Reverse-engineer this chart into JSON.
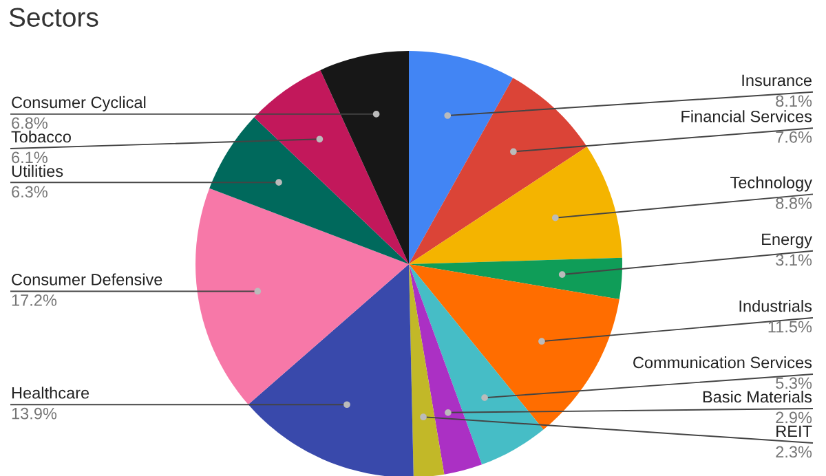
{
  "chart_data": {
    "type": "pie",
    "title": "Sectors",
    "categories": [
      "Insurance",
      "Financial Services",
      "Technology",
      "Energy",
      "Industrials",
      "Communication Services",
      "Basic Materials",
      "REIT",
      "Healthcare",
      "Consumer Defensive",
      "Utilities",
      "Tobacco",
      "Consumer Cyclical"
    ],
    "values": [
      8.1,
      7.6,
      8.8,
      3.1,
      11.5,
      5.3,
      2.9,
      2.3,
      13.9,
      17.2,
      6.3,
      6.1,
      6.8
    ],
    "colors": [
      "#4285f4",
      "#db4437",
      "#f4b400",
      "#0f9d58",
      "#ff6d00",
      "#46bdc6",
      "#ab30c4",
      "#c2b828",
      "#3949ab",
      "#f778a8",
      "#00695c",
      "#c2185b",
      "#171717"
    ],
    "value_labels": [
      "8.1%",
      "7.6%",
      "8.8%",
      "3.1%",
      "11.5%",
      "5.3%",
      "2.9%",
      "2.3%",
      "13.9%",
      "17.2%",
      "6.3%",
      "6.1%",
      "6.8%"
    ],
    "legend": false
  }
}
